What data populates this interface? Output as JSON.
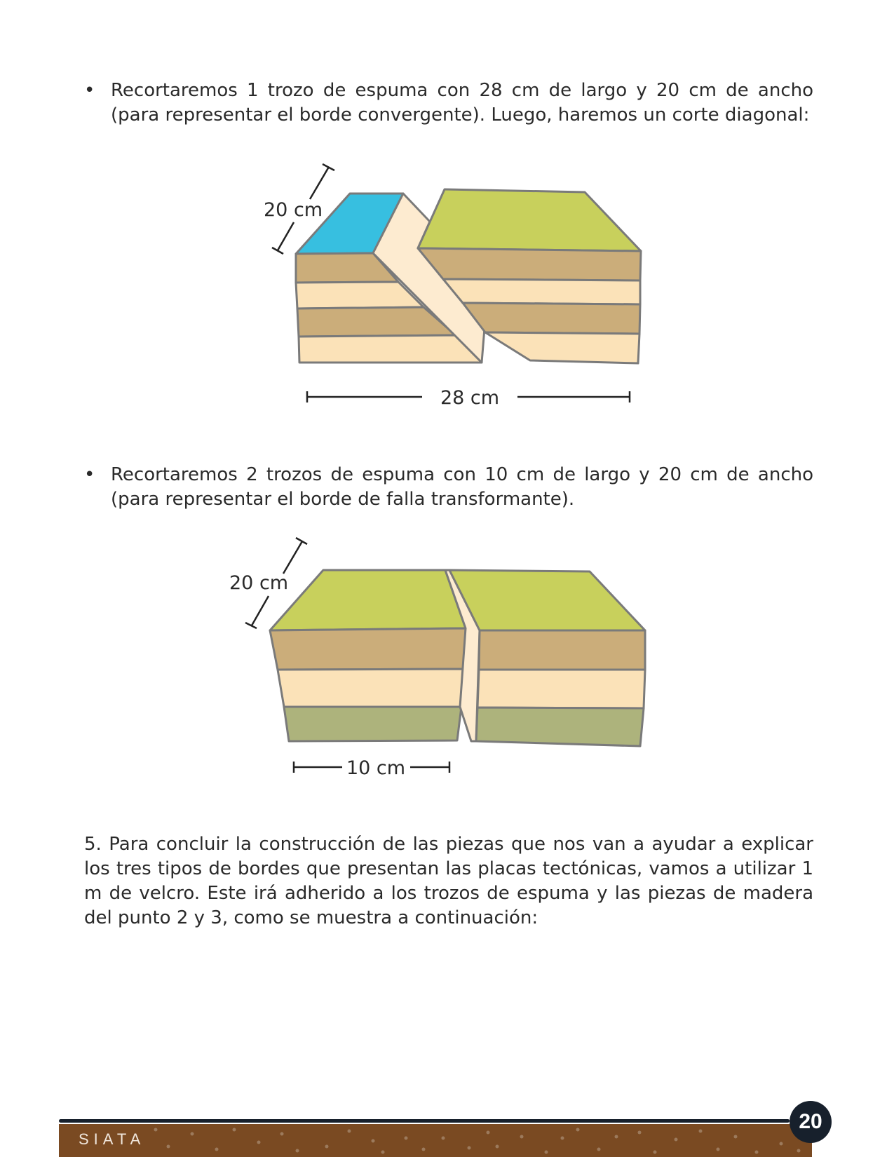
{
  "bullets": {
    "symbol": "•",
    "item1": "Recortaremos 1 trozo de espuma con 28 cm de largo y 20 cm de ancho (para representar el borde convergente). Luego, haremos un corte diagonal:",
    "item2": "Recortaremos 2 trozos de espuma con 10 cm de largo y 20 cm de ancho (para representar el borde de falla transformante)."
  },
  "figure1": {
    "width_label": "20 cm",
    "length_label": "28 cm"
  },
  "figure2": {
    "width_label": "20 cm",
    "length_label": "10 cm"
  },
  "step5": "5. Para concluir la construcción de las piezas que nos van a ayudar a explicar los tres tipos de bordes que presentan las placas tectónicas, vamos a utilizar 1 m de velcro. Este irá adherido a los trozos de espuma y las piezas de madera del punto 2 y 3, como se muestra a continuación:",
  "footer": {
    "brand": "SIATA",
    "page_number": "20"
  },
  "colors": {
    "ocean": "#37bfe0",
    "land": "#c8d05c",
    "layer_dark": "#cbad7a",
    "layer_light": "#fbe2b8",
    "layer_green": "#adb37c",
    "fault": "#fdebd0",
    "outline": "#7a7a7a",
    "footer_brown": "#7a4a22",
    "footer_navy": "#17202c"
  }
}
